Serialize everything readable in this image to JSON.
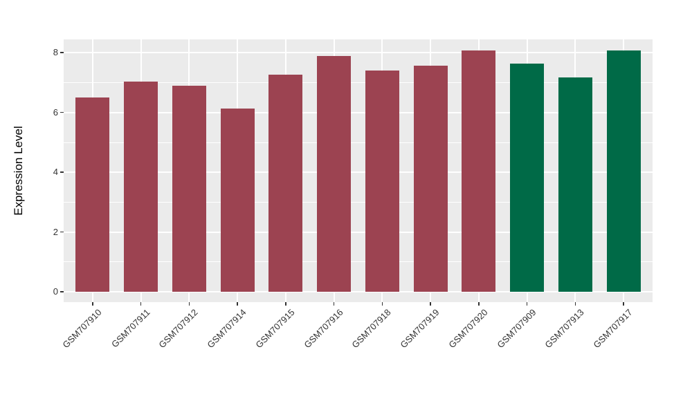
{
  "chart_data": {
    "type": "bar",
    "title": "",
    "xlabel": "",
    "ylabel": "Expression Level",
    "categories": [
      "GSM707910",
      "GSM707911",
      "GSM707912",
      "GSM707914",
      "GSM707915",
      "GSM707916",
      "GSM707918",
      "GSM707919",
      "GSM707920",
      "GSM707909",
      "GSM707913",
      "GSM707917"
    ],
    "values": [
      6.51,
      7.04,
      6.91,
      6.14,
      7.26,
      7.89,
      7.4,
      7.57,
      8.07,
      7.64,
      7.18,
      8.07
    ],
    "bar_colors": [
      "#9C4351",
      "#9C4351",
      "#9C4351",
      "#9C4351",
      "#9C4351",
      "#9C4351",
      "#9C4351",
      "#9C4351",
      "#9C4351",
      "#006A47",
      "#006A47",
      "#006A47"
    ],
    "group_colors": {
      "maroon_group": "#9C4351",
      "green_group": "#006A47"
    },
    "y_ticks": [
      0,
      2,
      4,
      6,
      8
    ],
    "y_minor_ticks": [
      1,
      3,
      5,
      7
    ],
    "ylim": [
      -0.36,
      8.44
    ],
    "x_label_angle_deg": 45,
    "legend_position": "none",
    "grid": "white major+minor horizontal, white vertical at categories",
    "panel_background": "#EBEBEB",
    "gridline_color": "#FFFFFF",
    "tick_mark_color": "#333333",
    "tick_label_color": "#333333",
    "axis_title_color": "#000000"
  }
}
